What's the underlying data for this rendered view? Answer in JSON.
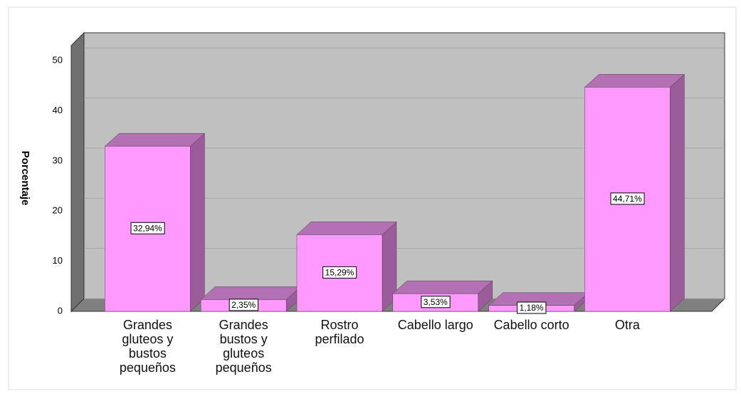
{
  "chart_data": {
    "type": "bar",
    "y_label": "Porcentaje",
    "categories": [
      "Grandes gluteos y bustos pequeños",
      "Grandes bustos y gluteos pequeños",
      "Rostro perfilado",
      "Cabello largo",
      "Cabello corto",
      "Otra"
    ],
    "values": [
      32.94,
      2.35,
      15.29,
      3.53,
      1.18,
      44.71
    ],
    "value_labels": [
      "32,94%",
      "2,35%",
      "15,29%",
      "3,53%",
      "1,18%",
      "44,71%"
    ],
    "color": "#ff99ff",
    "ylim": [
      0,
      53
    ],
    "yticks": [
      0,
      10,
      20,
      30,
      40,
      50
    ],
    "grid": true
  }
}
